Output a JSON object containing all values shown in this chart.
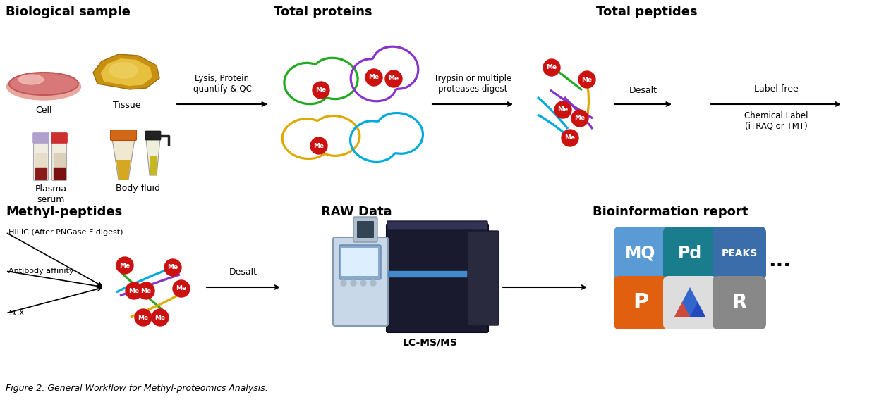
{
  "title": "Figure 2. General Workflow for Methyl-proteomics Analysis.",
  "bg_color": "#ffffff",
  "section_titles": {
    "bio_sample": "Biological sample",
    "total_proteins": "Total proteins",
    "total_peptides": "Total peptides",
    "methyl_peptides": "Methyl-peptides",
    "raw_data": "RAW Data",
    "bio_report": "Bioinformation report"
  },
  "arrow_labels": {
    "lysis": "Lysis, Protein\nquantify & QC",
    "trypsin": "Trypsin or multiple\nproteases digest",
    "desalt1": "Desalt",
    "label_free": "Label free",
    "chemical_label": "Chemical Label\n(iTRAQ or TMT)",
    "desalt2": "Desalt",
    "lc_ms": "LC-MS/MS"
  },
  "bio_labels": [
    "Cell",
    "Tissue",
    "Plasma\nserum",
    "Body fluid"
  ],
  "methyl_labels": [
    "HILIC (After PNGase F digest)",
    "Antibody affinity",
    "SCX"
  ],
  "protein_colors": [
    "#22aa22",
    "#8833cc",
    "#ddaa00",
    "#00aadd"
  ],
  "me_ball_color": "#cc1111",
  "me_text_color": "#ffffff"
}
